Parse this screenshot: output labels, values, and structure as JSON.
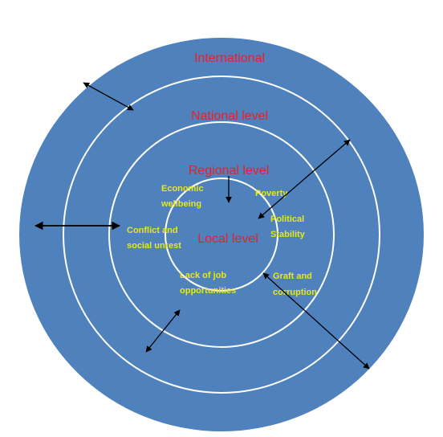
{
  "colors": {
    "circle_fill": "#4F81BD",
    "ring_stroke": "#FFFFFF",
    "level_label": "#E8202A",
    "factor_label": "#E6E817",
    "arrow": "#000000"
  },
  "levels": {
    "international": "International",
    "national": "National level",
    "regional": "Regional level",
    "local": "Local level"
  },
  "factors": {
    "economic": [
      "Economic",
      "wellbeing"
    ],
    "poverty": [
      "Poverty"
    ],
    "political": [
      "Political",
      "Stability"
    ],
    "conflict": [
      "Conflict and",
      "social unrest"
    ],
    "lack_jobs": [
      "Lack of job",
      "opportunities"
    ],
    "graft": [
      "Graft and",
      "corruption"
    ]
  }
}
